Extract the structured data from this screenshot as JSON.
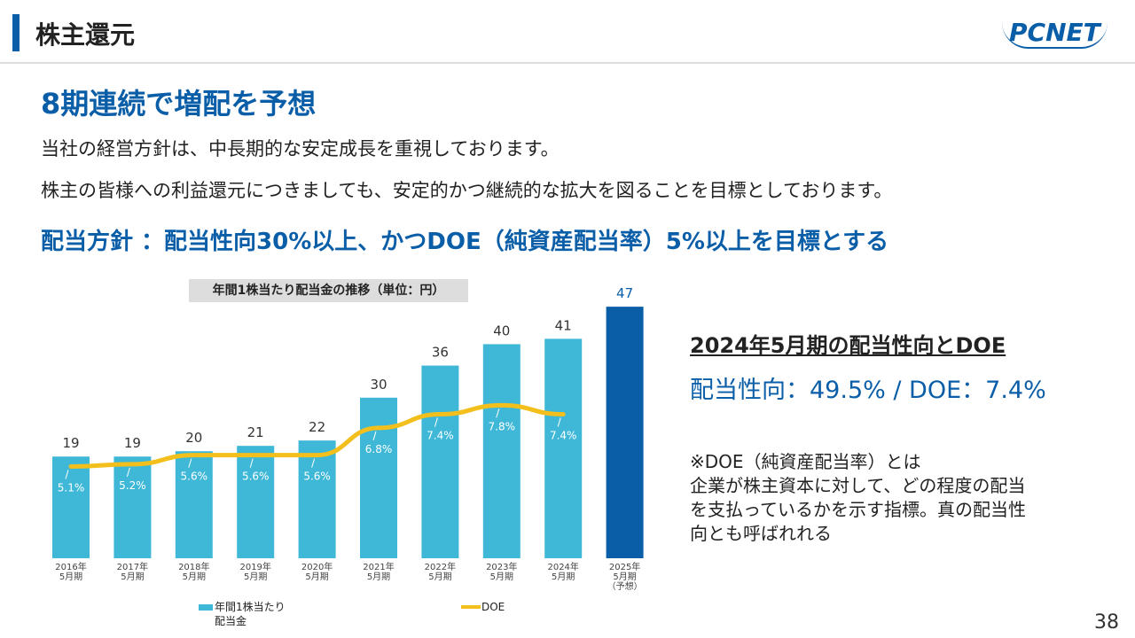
{
  "header": {
    "title": "株主還元",
    "logo": "PCNET"
  },
  "headline": "8期連続で増配を予想",
  "body": [
    "当社の経営方針は、中長期的な安定成長を重視しております。",
    "株主の皆様への利益還元につきましても、安定的かつ継続的な拡大を図ることを目標としております。"
  ],
  "policy": "配当方針 ：配当性向30%以上、かつDOE（純資産配当率）5%以上を目標とする",
  "side": {
    "heading": "2024年5月期の配当性向とDOE",
    "figures": "配当性向：49.5% / DOE：7.4%",
    "note": [
      "※DOE（純資産配当率）とは",
      "企業が株主資本に対して、どの程度の配当",
      "を支払っているかを示す指標。真の配当性",
      "向とも呼ばれれる"
    ]
  },
  "page_number": "38",
  "chart_data": {
    "type": "bar",
    "title": "年間1株当たり配当金の推移（単位：円）",
    "categories": [
      [
        "2016年",
        "5月期"
      ],
      [
        "2017年",
        "5月期"
      ],
      [
        "2018年",
        "5月期"
      ],
      [
        "2019年",
        "5月期"
      ],
      [
        "2020年",
        "5月期"
      ],
      [
        "2021年",
        "5月期"
      ],
      [
        "2022年",
        "5月期"
      ],
      [
        "2023年",
        "5月期"
      ],
      [
        "2024年",
        "5月期"
      ],
      [
        "2025年",
        "5月期",
        "（予想）"
      ]
    ],
    "series": [
      {
        "name": "年間1株当たり配当金",
        "color": "#3fb8d8",
        "colors": [
          "#3fb8d8",
          "#3fb8d8",
          "#3fb8d8",
          "#3fb8d8",
          "#3fb8d8",
          "#3fb8d8",
          "#3fb8d8",
          "#3fb8d8",
          "#3fb8d8",
          "#0a5ea8"
        ],
        "values": [
          19,
          19,
          20,
          21,
          22,
          30,
          36,
          40,
          41,
          47
        ]
      },
      {
        "name": "DOE",
        "type": "line",
        "color": "#f2bf1c",
        "values": [
          5.1,
          5.2,
          5.6,
          5.6,
          5.6,
          6.8,
          7.4,
          7.8,
          7.4,
          null
        ],
        "value_labels": [
          "5.1%",
          "5.2%",
          "5.6%",
          "5.6%",
          "5.6%",
          "6.8%",
          "7.4%",
          "7.8%",
          "7.4%",
          null
        ]
      }
    ]
  }
}
